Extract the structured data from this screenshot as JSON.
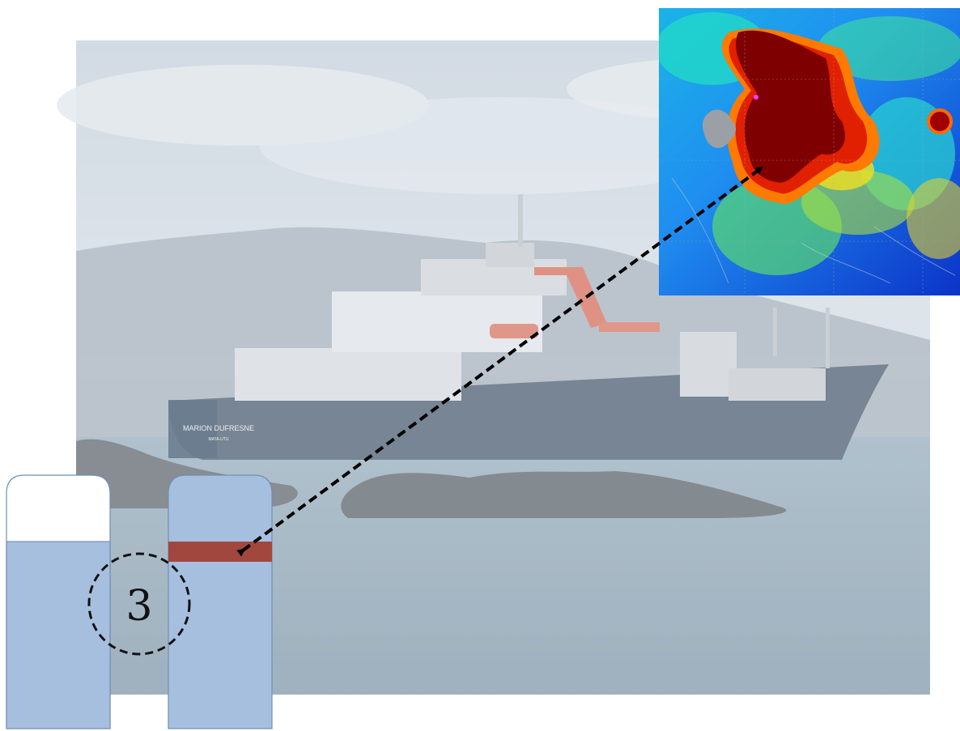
{
  "diagram": {
    "step_number": "3",
    "ship_name": "MARION DUFRESNE",
    "ship_port": "MATA-UTU"
  },
  "colors": {
    "sea": "#8fa6b4",
    "sky": "#d8e1ea",
    "hull": "#586a7e",
    "tube_fill": "#a7bfdf",
    "tube_border": "#6f8fb5",
    "highlight_band": "#a2473d",
    "heatmap_hot": "#7f0000",
    "heatmap_cold": "#0033cc",
    "arrow": "#000000"
  },
  "icons": {
    "photo": "research-vessel-photo",
    "map": "satellite-chlorophyll-map"
  }
}
